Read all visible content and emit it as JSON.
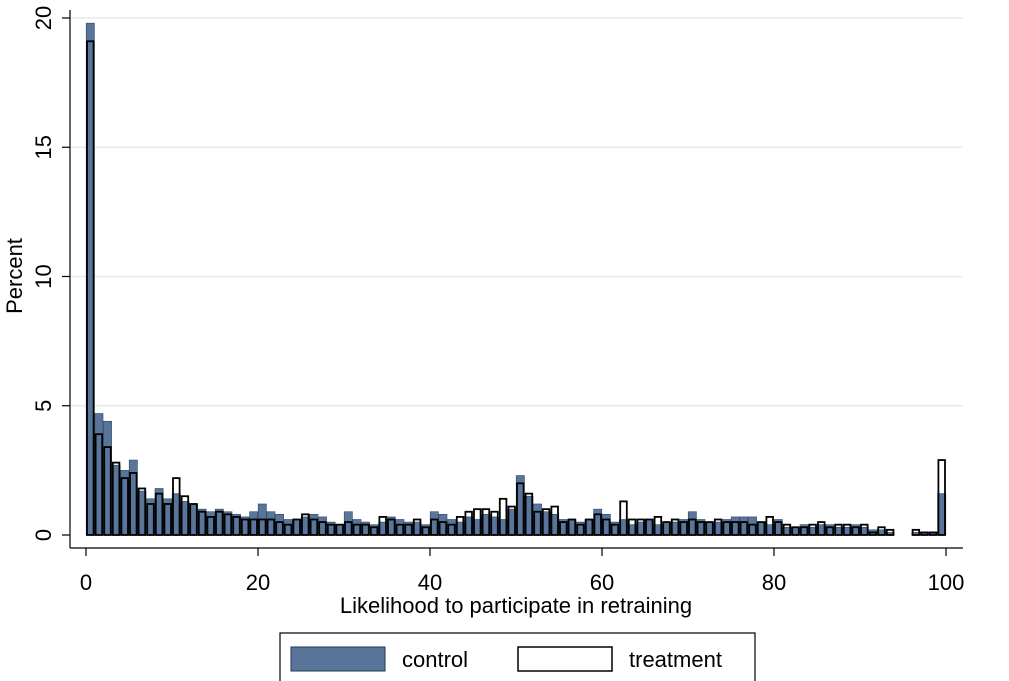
{
  "chart_data": {
    "type": "bar",
    "title": "",
    "xlabel": "Likelihood to participate in retraining",
    "ylabel": "Percent",
    "xlim": [
      0,
      100
    ],
    "ylim": [
      0,
      20
    ],
    "x_ticks": [
      0,
      20,
      40,
      60,
      80,
      100
    ],
    "y_ticks": [
      0,
      5,
      10,
      15,
      20
    ],
    "grid": "horizontal",
    "legend_position": "bottom",
    "bin_width": 1,
    "x": [
      0,
      1,
      2,
      3,
      4,
      5,
      6,
      7,
      8,
      9,
      10,
      11,
      12,
      13,
      14,
      15,
      16,
      17,
      18,
      19,
      20,
      21,
      22,
      23,
      24,
      25,
      26,
      27,
      28,
      29,
      30,
      31,
      32,
      33,
      34,
      35,
      36,
      37,
      38,
      39,
      40,
      41,
      42,
      43,
      44,
      45,
      46,
      47,
      48,
      49,
      50,
      51,
      52,
      53,
      54,
      55,
      56,
      57,
      58,
      59,
      60,
      61,
      62,
      63,
      64,
      65,
      66,
      67,
      68,
      69,
      70,
      71,
      72,
      73,
      74,
      75,
      76,
      77,
      78,
      79,
      80,
      81,
      82,
      83,
      84,
      85,
      86,
      87,
      88,
      89,
      90,
      91,
      92,
      93,
      94,
      95,
      96,
      97,
      98,
      99
    ],
    "series": [
      {
        "name": "control",
        "color": "#59769A",
        "values": [
          19.8,
          4.7,
          4.4,
          2.7,
          2.5,
          2.9,
          1.7,
          1.4,
          1.8,
          1.4,
          1.6,
          1.3,
          1.2,
          1.0,
          0.9,
          1.0,
          0.9,
          0.8,
          0.7,
          0.9,
          1.2,
          0.9,
          0.8,
          0.6,
          0.6,
          0.7,
          0.8,
          0.7,
          0.5,
          0.4,
          0.9,
          0.6,
          0.5,
          0.4,
          0.5,
          0.7,
          0.6,
          0.5,
          0.5,
          0.4,
          0.9,
          0.8,
          0.6,
          0.5,
          0.7,
          0.6,
          0.8,
          0.7,
          0.6,
          1.0,
          2.3,
          1.5,
          1.2,
          0.9,
          0.8,
          0.6,
          0.6,
          0.5,
          0.6,
          1.0,
          0.8,
          0.5,
          0.6,
          0.4,
          0.5,
          0.6,
          0.4,
          0.5,
          0.5,
          0.6,
          0.9,
          0.6,
          0.5,
          0.5,
          0.6,
          0.7,
          0.7,
          0.7,
          0.5,
          0.4,
          0.6,
          0.3,
          0.3,
          0.4,
          0.3,
          0.4,
          0.4,
          0.3,
          0.3,
          0.4,
          0.3,
          0.2,
          0.2,
          0.1,
          0.0,
          0.0,
          0.1,
          0.1,
          0.1,
          1.6
        ]
      },
      {
        "name": "treatment",
        "color": "#FFFFFF",
        "values": [
          19.1,
          3.9,
          3.4,
          2.8,
          2.2,
          2.4,
          1.8,
          1.2,
          1.6,
          1.2,
          2.2,
          1.5,
          1.2,
          0.9,
          0.7,
          0.9,
          0.8,
          0.7,
          0.6,
          0.6,
          0.6,
          0.6,
          0.5,
          0.4,
          0.6,
          0.8,
          0.6,
          0.5,
          0.4,
          0.4,
          0.5,
          0.4,
          0.4,
          0.3,
          0.7,
          0.6,
          0.4,
          0.4,
          0.6,
          0.3,
          0.6,
          0.5,
          0.4,
          0.7,
          0.9,
          1.0,
          1.0,
          0.9,
          1.4,
          1.1,
          2.0,
          1.6,
          0.9,
          1.0,
          1.1,
          0.5,
          0.6,
          0.4,
          0.6,
          0.8,
          0.6,
          0.4,
          1.3,
          0.6,
          0.6,
          0.6,
          0.7,
          0.5,
          0.6,
          0.5,
          0.6,
          0.5,
          0.5,
          0.6,
          0.5,
          0.5,
          0.5,
          0.4,
          0.5,
          0.7,
          0.5,
          0.4,
          0.3,
          0.3,
          0.4,
          0.5,
          0.3,
          0.4,
          0.4,
          0.3,
          0.4,
          0.1,
          0.3,
          0.2,
          0.0,
          0.0,
          0.2,
          0.1,
          0.1,
          2.9
        ]
      }
    ]
  }
}
